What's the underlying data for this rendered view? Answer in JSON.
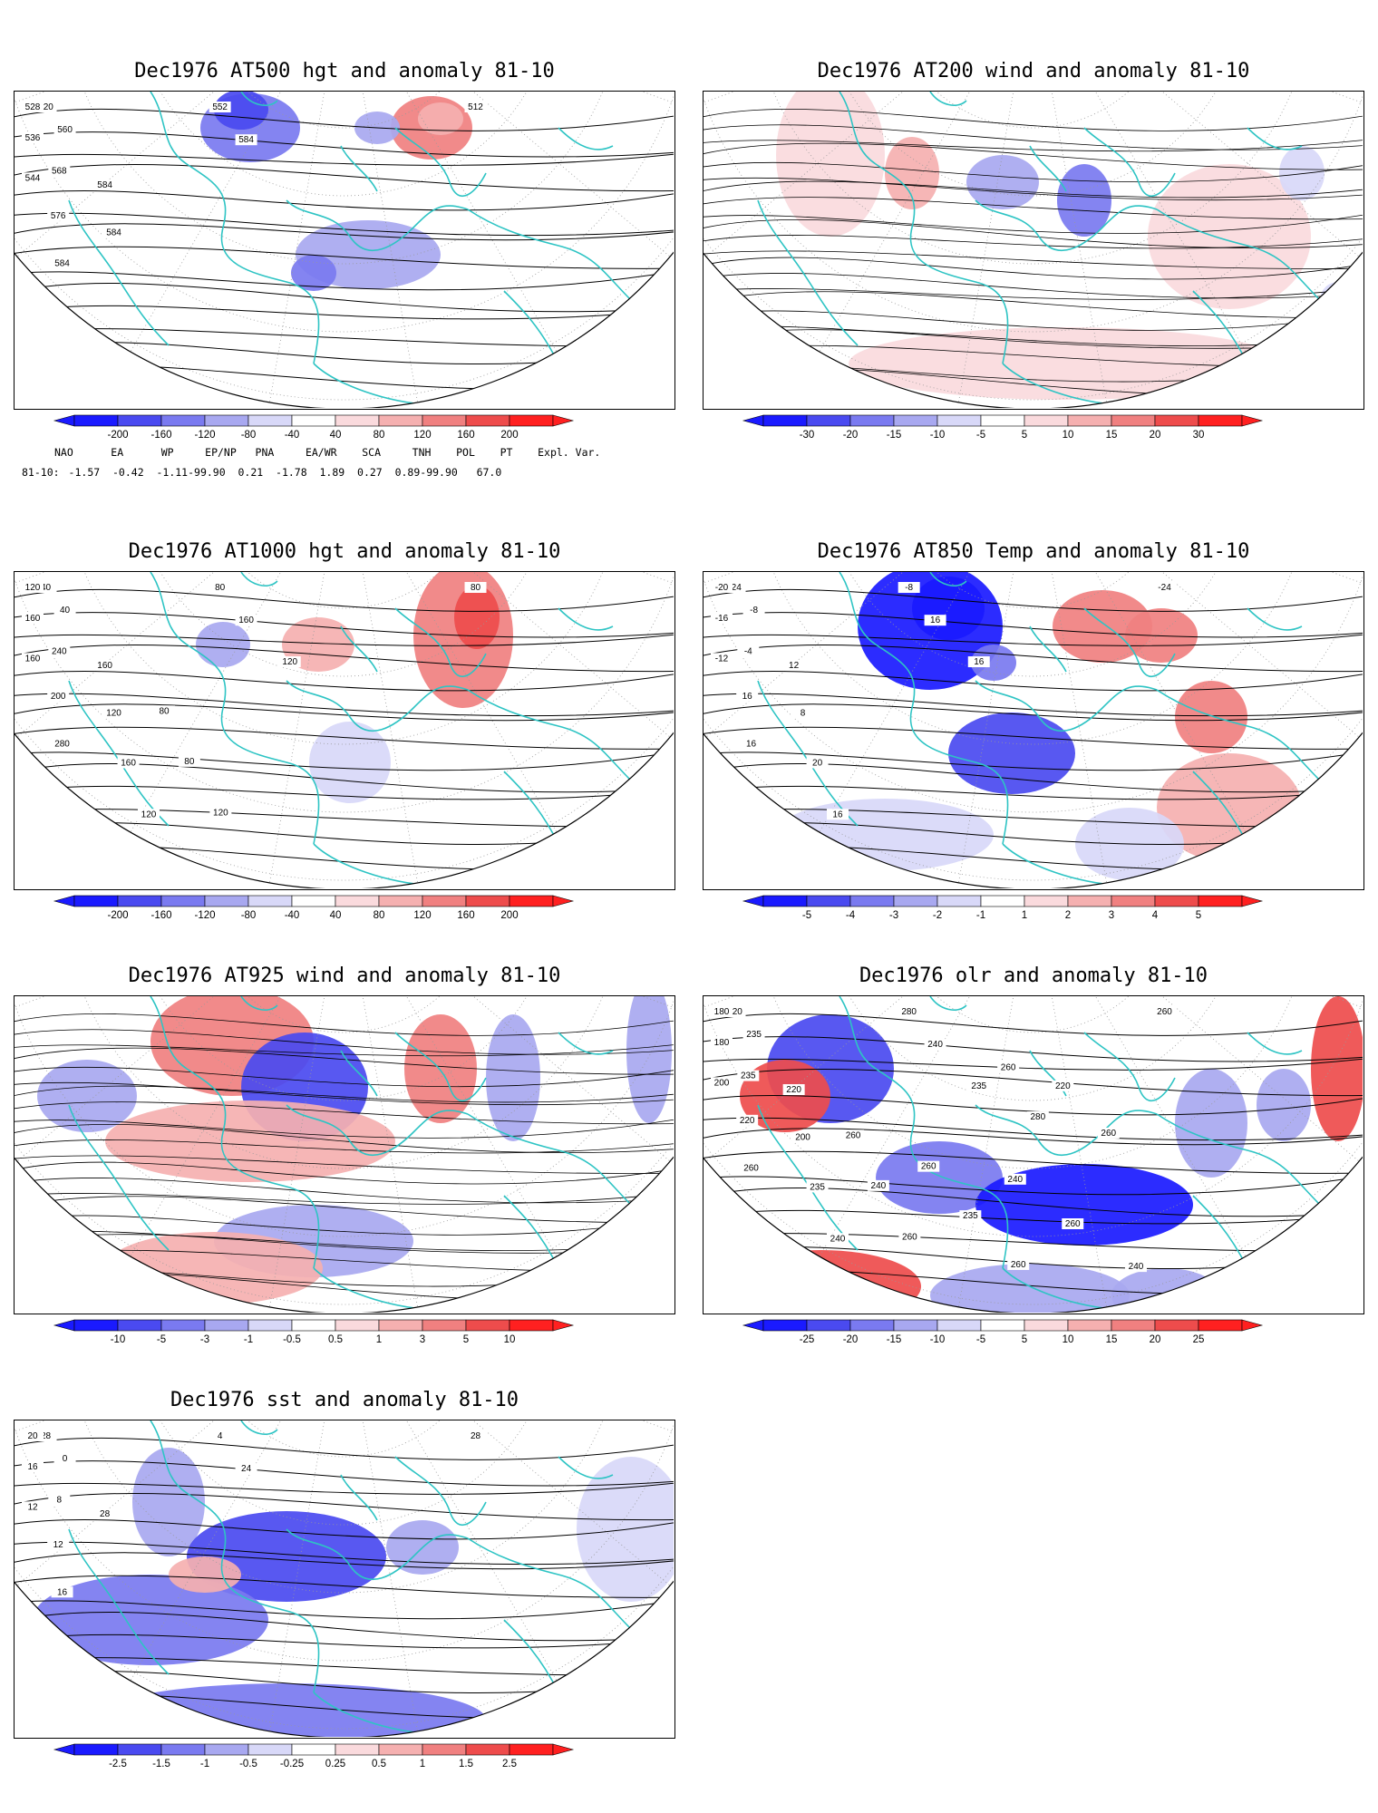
{
  "palette": {
    "coast": "#2ec4c4",
    "contour": "#000000",
    "neg": [
      "#1a1aff",
      "#4a4af0",
      "#7a7af0",
      "#a8a8f0",
      "#d8d8f8"
    ],
    "pos": [
      "#fadadd",
      "#f5b0b0",
      "#f08080",
      "#ee4c4c",
      "#ff2020"
    ]
  },
  "panels": [
    {
      "id": "p1",
      "title": "Dec1976 AT500 hgt and anomaly 81-10",
      "colorbar": [
        "-200",
        "-160",
        "-120",
        "-80",
        "-40",
        "40",
        "80",
        "120",
        "160",
        "200"
      ],
      "contour_labels": [
        "512",
        "520",
        "528",
        "536",
        "544",
        "552",
        "560",
        "568",
        "576",
        "584",
        "584",
        "584",
        "584"
      ]
    },
    {
      "id": "p2",
      "title": "Dec1976 AT200 wind and anomaly 81-10",
      "colorbar": [
        "-30",
        "-20",
        "-15",
        "-10",
        "-5",
        "5",
        "10",
        "15",
        "20",
        "30"
      ],
      "contour_labels": []
    },
    {
      "id": "p3",
      "title": "Dec1976 AT1000 hgt and anomaly 81-10",
      "colorbar": [
        "-200",
        "-160",
        "-120",
        "-80",
        "-40",
        "40",
        "80",
        "120",
        "160",
        "200"
      ],
      "contour_labels": [
        "80",
        "40",
        "120",
        "160",
        "160",
        "80",
        "40",
        "240",
        "200",
        "280",
        "160",
        "160",
        "120",
        "160",
        "120",
        "120",
        "80",
        "80",
        "120"
      ]
    },
    {
      "id": "p4",
      "title": "Dec1976 AT850 Temp and anomaly 81-10",
      "colorbar": [
        "-5",
        "-4",
        "-3",
        "-2",
        "-1",
        "1",
        "2",
        "3",
        "4",
        "5"
      ],
      "contour_labels": [
        "-24",
        "-24",
        "-20",
        "-16",
        "-12",
        "-8",
        "-8",
        "-4",
        "16",
        "16",
        "16",
        "12",
        "8",
        "20",
        "16",
        "16"
      ]
    },
    {
      "id": "p5",
      "title": "Dec1976 AT925 wind and anomaly 81-10",
      "colorbar": [
        "-10",
        "-5",
        "-3",
        "-1",
        "-0.5",
        "0.5",
        "1",
        "3",
        "5",
        "10"
      ],
      "contour_labels": []
    },
    {
      "id": "p6",
      "title": "Dec1976 olr and anomaly 81-10",
      "colorbar": [
        "-25",
        "-20",
        "-15",
        "-10",
        "-5",
        "5",
        "10",
        "15",
        "20",
        "25"
      ],
      "contour_labels": [
        "260",
        "220",
        "180",
        "180",
        "200",
        "280",
        "235",
        "235",
        "220",
        "260",
        "240",
        "220",
        "200",
        "235",
        "240",
        "235",
        "260",
        "240",
        "260",
        "260",
        "280",
        "260",
        "235",
        "260",
        "220",
        "260",
        "240",
        "260",
        "240"
      ]
    },
    {
      "id": "p7",
      "title": "Dec1976 sst and anomaly 81-10",
      "colorbar": [
        "-2.5",
        "-1.5",
        "-1",
        "-0.5",
        "-0.25",
        "0.25",
        "0.5",
        "1",
        "1.5",
        "2.5"
      ],
      "contour_labels": [
        "28",
        "28",
        "20",
        "16",
        "12",
        "4",
        "0",
        "8",
        "12",
        "16",
        "24",
        "28"
      ]
    }
  ],
  "indices": {
    "header": [
      "NAO",
      "EA",
      "WP",
      "EP/NP",
      "PNA",
      "EA/WR",
      "SCA",
      "TNH",
      "POL",
      "PT",
      "Expl. Var."
    ],
    "row_label": "81-10:",
    "row": "-1.57  -0.42  -1.11-99.90  0.21  -1.78  1.89  0.27  0.89-99.90   67.0"
  }
}
